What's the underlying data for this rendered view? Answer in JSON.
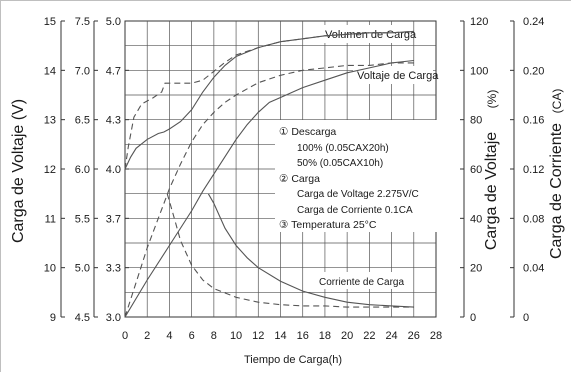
{
  "chart_data": {
    "type": "line",
    "x_axis": {
      "label": "Tiempo de Carga(h)",
      "ticks": [
        "0",
        "2",
        "4",
        "6",
        "8",
        "10",
        "12",
        "14",
        "16",
        "18",
        "20",
        "22",
        "24",
        "26",
        "28"
      ],
      "range": [
        0,
        28
      ]
    },
    "left_axes": {
      "title": "Carga de Voltaje (V)",
      "v15_ticks": [
        "15",
        "14",
        "13",
        "12",
        "11",
        "10",
        "9"
      ],
      "v7_5_ticks": [
        "7.5",
        "7.0",
        "6.5",
        "6.0",
        "5.5",
        "5.0",
        "4.5"
      ],
      "v5_ticks": [
        "5.0",
        "4.7",
        "4.3",
        "4.0",
        "3.7",
        "3.3",
        "3.0"
      ],
      "range_v5": [
        3.0,
        5.0
      ]
    },
    "right_axes": {
      "pct_title": "Carga de Voltaje",
      "pct_unit": "(%)",
      "pct_ticks": [
        "120",
        "100",
        "80",
        "60",
        "40",
        "20",
        "0"
      ],
      "pct_range": [
        0,
        120
      ],
      "ca_title": "Carga de Corriente",
      "ca_unit": "(CA)",
      "ca_ticks": [
        "0.24",
        "0.20",
        "0.16",
        "0.12",
        "0.08",
        "0.04",
        "0"
      ],
      "ca_range": [
        0,
        0.24
      ]
    },
    "grid": true,
    "legend_box": {
      "line1": "① Descarga",
      "line2": "100% (0.05CAX20h)",
      "line3": "50% (0.05CAX10h)",
      "line4": "② Carga",
      "line5": "Carga de Voltage 2.275V/C",
      "line6": "Carga de Corriente 0.1CA",
      "line7": "③ Temperatura 25°C"
    },
    "annotations": {
      "volumen": "Volumen de Carga",
      "voltaje": "Voltaje de Carga",
      "corriente": "Corriente de Carga"
    },
    "series": [
      {
        "label": "voltaje_100",
        "axis": "v5",
        "style": "solid",
        "points": [
          [
            0,
            4.0
          ],
          [
            0.5,
            4.08
          ],
          [
            1,
            4.14
          ],
          [
            2,
            4.2
          ],
          [
            3,
            4.24
          ],
          [
            3.5,
            4.25
          ],
          [
            4,
            4.27
          ],
          [
            5,
            4.32
          ],
          [
            6,
            4.4
          ],
          [
            7,
            4.52
          ],
          [
            8,
            4.62
          ],
          [
            9,
            4.7
          ],
          [
            10,
            4.76
          ],
          [
            12,
            4.82
          ],
          [
            14,
            4.86
          ],
          [
            16,
            4.88
          ],
          [
            18,
            4.9
          ],
          [
            20,
            4.91
          ],
          [
            22,
            4.92
          ],
          [
            24,
            4.92
          ],
          [
            26,
            4.93
          ]
        ]
      },
      {
        "label": "voltaje_50",
        "axis": "v5",
        "style": "dashed",
        "points": [
          [
            0,
            4.0
          ],
          [
            0.3,
            4.15
          ],
          [
            0.8,
            4.35
          ],
          [
            1.5,
            4.44
          ],
          [
            2.5,
            4.48
          ],
          [
            3.3,
            4.52
          ],
          [
            3.6,
            4.58
          ],
          [
            4,
            4.58
          ],
          [
            5,
            4.58
          ],
          [
            6,
            4.58
          ],
          [
            7,
            4.6
          ],
          [
            8,
            4.66
          ],
          [
            9,
            4.72
          ],
          [
            10,
            4.77
          ],
          [
            12,
            4.82
          ],
          [
            14,
            4.86
          ],
          [
            16,
            4.88
          ],
          [
            18,
            4.9
          ],
          [
            20,
            4.91
          ],
          [
            22,
            4.92
          ],
          [
            24,
            4.92
          ],
          [
            26,
            4.93
          ]
        ]
      },
      {
        "label": "volumen_100",
        "axis": "pct",
        "style": "solid",
        "points": [
          [
            0,
            0
          ],
          [
            2,
            15
          ],
          [
            4,
            29
          ],
          [
            6,
            43
          ],
          [
            7,
            51
          ],
          [
            8,
            58
          ],
          [
            9,
            65
          ],
          [
            10,
            72
          ],
          [
            11,
            78
          ],
          [
            12,
            83
          ],
          [
            13,
            87
          ],
          [
            14,
            89
          ],
          [
            16,
            93
          ],
          [
            18,
            96
          ],
          [
            20,
            99
          ],
          [
            22,
            101
          ],
          [
            24,
            103
          ],
          [
            26,
            104
          ]
        ]
      },
      {
        "label": "volumen_50",
        "axis": "pct",
        "style": "dashed",
        "points": [
          [
            0,
            0
          ],
          [
            1,
            14
          ],
          [
            2,
            28
          ],
          [
            3,
            40
          ],
          [
            3.5,
            46
          ],
          [
            4,
            52
          ],
          [
            5,
            62
          ],
          [
            6,
            71
          ],
          [
            7,
            78
          ],
          [
            8,
            83
          ],
          [
            9,
            87
          ],
          [
            10,
            90
          ],
          [
            12,
            95
          ],
          [
            14,
            98
          ],
          [
            16,
            100
          ],
          [
            18,
            101
          ],
          [
            20,
            102
          ],
          [
            22,
            102
          ],
          [
            24,
            103
          ],
          [
            26,
            103
          ]
        ]
      },
      {
        "label": "corriente_100",
        "axis": "ca",
        "style": "solid",
        "points": [
          [
            7.5,
            0.1
          ],
          [
            8,
            0.092
          ],
          [
            9,
            0.072
          ],
          [
            10,
            0.058
          ],
          [
            11,
            0.048
          ],
          [
            12,
            0.04
          ],
          [
            14,
            0.029
          ],
          [
            16,
            0.021
          ],
          [
            18,
            0.016
          ],
          [
            20,
            0.012
          ],
          [
            22,
            0.01
          ],
          [
            24,
            0.009
          ],
          [
            26,
            0.008
          ]
        ]
      },
      {
        "label": "corriente_50",
        "axis": "ca",
        "style": "dashed",
        "points": [
          [
            3.8,
            0.1
          ],
          [
            4,
            0.094
          ],
          [
            4.5,
            0.078
          ],
          [
            5,
            0.062
          ],
          [
            6,
            0.042
          ],
          [
            7,
            0.03
          ],
          [
            8,
            0.023
          ],
          [
            10,
            0.016
          ],
          [
            12,
            0.012
          ],
          [
            14,
            0.01
          ],
          [
            16,
            0.009
          ],
          [
            18,
            0.009
          ],
          [
            20,
            0.008
          ],
          [
            22,
            0.008
          ],
          [
            24,
            0.008
          ],
          [
            26,
            0.008
          ]
        ]
      }
    ]
  }
}
